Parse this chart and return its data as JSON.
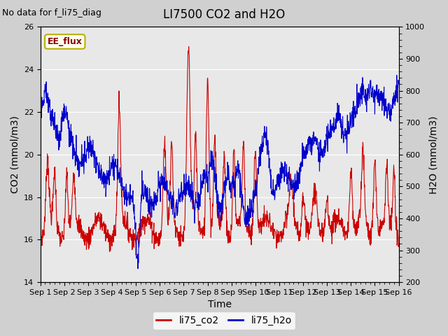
{
  "title": "LI7500 CO2 and H2O",
  "subtitle": "No data for f_li75_diag",
  "xlabel": "Time",
  "ylabel_left": "CO2 (mmol/m3)",
  "ylabel_right": "H2O (mmol/m3)",
  "ylim_left": [
    14,
    26
  ],
  "ylim_right": [
    200,
    1000
  ],
  "legend_label1": "li75_co2",
  "legend_label2": "li75_h2o",
  "legend_box_label": "EE_flux",
  "color_co2": "#cc0000",
  "color_h2o": "#0000cc",
  "fig_bg_color": "#d0d0d0",
  "plot_bg_color": "#e8e8e8",
  "xtick_labels": [
    "Sep 1",
    "Sep 2",
    "Sep 3",
    "Sep 4",
    "Sep 5",
    "Sep 6",
    "Sep 7",
    "Sep 8",
    "Sep 9",
    "Sep 10",
    "Sep 11",
    "Sep 12",
    "Sep 13",
    "Sep 14",
    "Sep 15",
    "Sep 16"
  ],
  "yticks_left": [
    14,
    16,
    18,
    20,
    22,
    24,
    26
  ],
  "yticks_right": [
    200,
    300,
    400,
    500,
    600,
    700,
    800,
    900,
    1000
  ],
  "title_fontsize": 12,
  "subtitle_fontsize": 9,
  "axis_label_fontsize": 10,
  "tick_fontsize": 8,
  "legend_fontsize": 10
}
